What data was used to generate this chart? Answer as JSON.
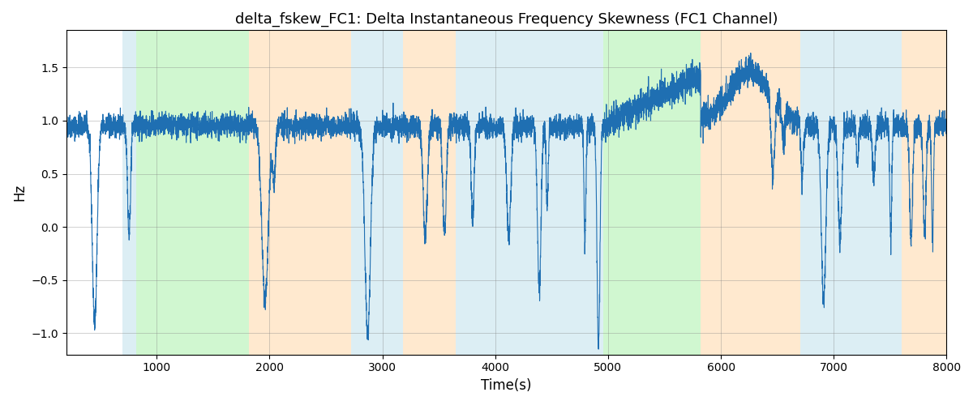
{
  "title": "delta_fskew_FC1: Delta Instantaneous Frequency Skewness (FC1 Channel)",
  "xlabel": "Time(s)",
  "ylabel": "Hz",
  "xlim": [
    200,
    8000
  ],
  "ylim": [
    -1.2,
    1.85
  ],
  "line_color": "#1f6fb2",
  "line_width": 0.8,
  "regions": [
    {
      "xmin": 700,
      "xmax": 820,
      "color": "#add8e6",
      "alpha": 0.42
    },
    {
      "xmin": 820,
      "xmax": 1820,
      "color": "#90ee90",
      "alpha": 0.42
    },
    {
      "xmin": 1820,
      "xmax": 2720,
      "color": "#ffd5a0",
      "alpha": 0.5
    },
    {
      "xmin": 2720,
      "xmax": 3180,
      "color": "#add8e6",
      "alpha": 0.42
    },
    {
      "xmin": 3180,
      "xmax": 3650,
      "color": "#ffd5a0",
      "alpha": 0.5
    },
    {
      "xmin": 3650,
      "xmax": 4880,
      "color": "#add8e6",
      "alpha": 0.42
    },
    {
      "xmin": 4880,
      "xmax": 4960,
      "color": "#add8e6",
      "alpha": 0.42
    },
    {
      "xmin": 4960,
      "xmax": 5820,
      "color": "#90ee90",
      "alpha": 0.42
    },
    {
      "xmin": 5820,
      "xmax": 6700,
      "color": "#ffd5a0",
      "alpha": 0.5
    },
    {
      "xmin": 6700,
      "xmax": 7600,
      "color": "#add8e6",
      "alpha": 0.42
    },
    {
      "xmin": 7600,
      "xmax": 8100,
      "color": "#ffd5a0",
      "alpha": 0.5
    }
  ],
  "seed": 42,
  "n_points": 7800,
  "xticks": [
    1000,
    2000,
    3000,
    4000,
    5000,
    6000,
    7000,
    8000
  ]
}
